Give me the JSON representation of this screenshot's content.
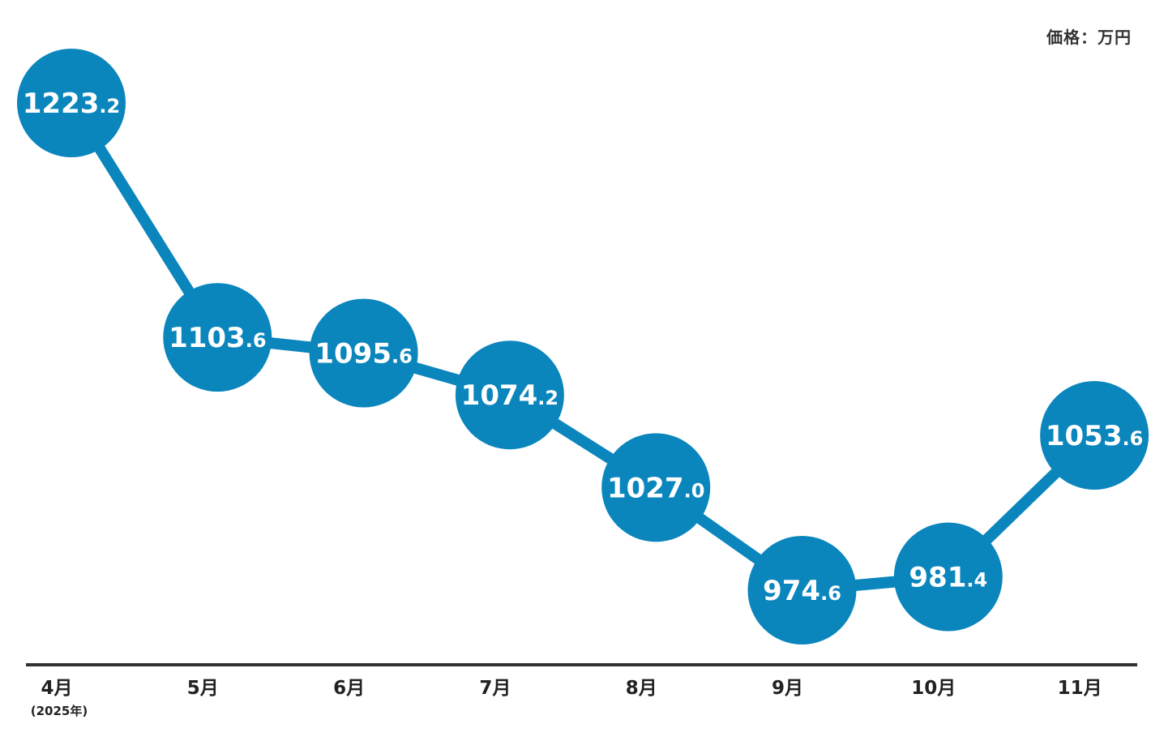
{
  "unit_label": "価格：万円",
  "chart_data": {
    "type": "line",
    "title": "",
    "xlabel": "",
    "ylabel": "",
    "unit": "価格：万円",
    "categories": [
      "4月",
      "5月",
      "6月",
      "7月",
      "8月",
      "9月",
      "10月",
      "11月"
    ],
    "category_sublabels": [
      "(2025年)",
      "",
      "",
      "",
      "",
      "",
      "",
      ""
    ],
    "values": [
      1223.2,
      1103.6,
      1095.6,
      1074.2,
      1027.0,
      974.6,
      981.4,
      1053.6
    ],
    "value_labels": [
      "1223.2",
      "1103.6",
      "1095.6",
      "1074.2",
      "1027.0",
      "974.6",
      "981.4",
      "1053.6"
    ],
    "grid": false,
    "legend": "none",
    "colors": {
      "marker": "#0a86bd",
      "line": "#0a86bd",
      "marker_text": "#ffffff",
      "axis": "#333333",
      "tick_text": "#222222"
    }
  }
}
